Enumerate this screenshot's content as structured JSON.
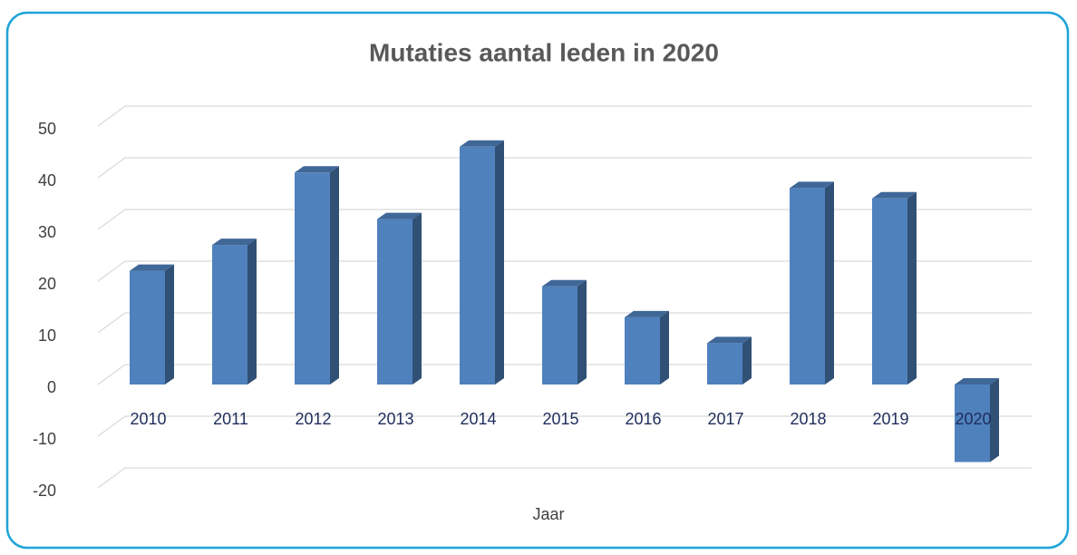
{
  "chart_data": {
    "type": "bar3d",
    "title": "Mutaties aantal leden in 2020",
    "categories": [
      "2010",
      "2011",
      "2012",
      "2013",
      "2014",
      "2015",
      "2016",
      "2017",
      "2018",
      "2019",
      "2020"
    ],
    "values": [
      22,
      27,
      41,
      32,
      46,
      19,
      13,
      8,
      38,
      36,
      -15
    ],
    "color": "#4f81bd",
    "x_label": "Jaar",
    "ylim": [
      -20,
      50
    ],
    "yticks": [
      -20,
      -10,
      0,
      10,
      20,
      30,
      40,
      50
    ],
    "grid": true
  }
}
